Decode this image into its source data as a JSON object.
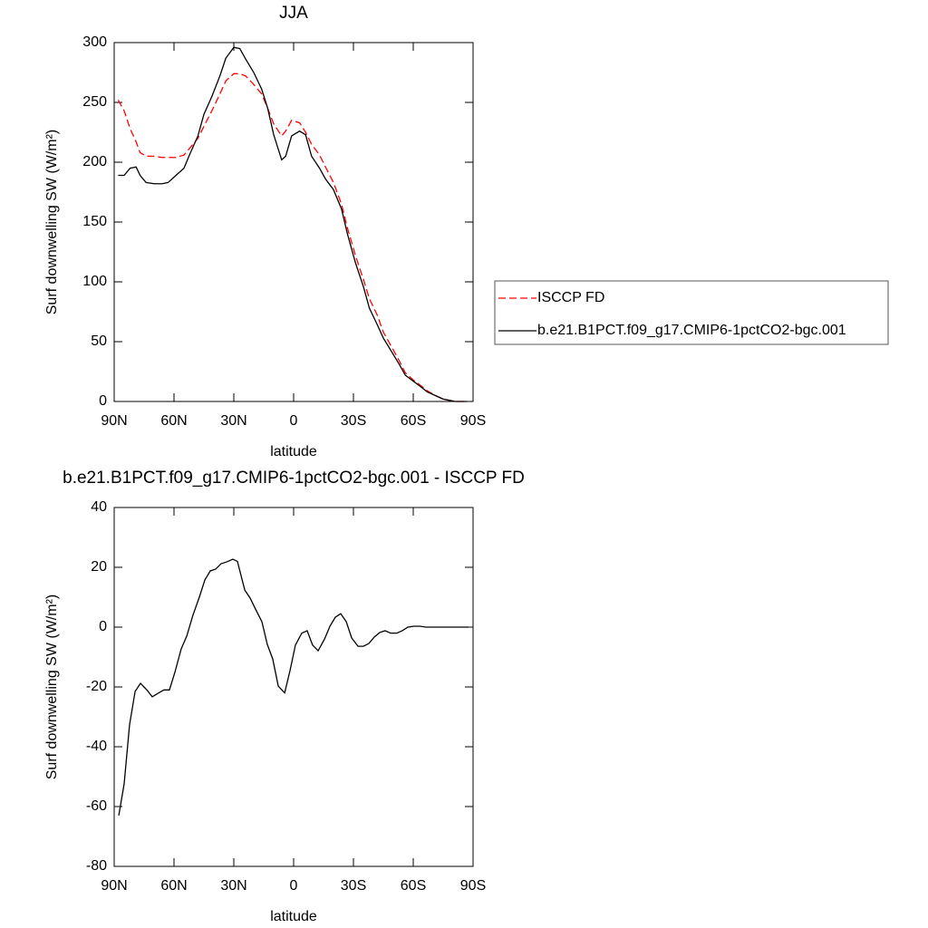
{
  "chart_data": [
    {
      "type": "line",
      "title": "JJA",
      "x_label": "latitude",
      "y_label": "Surf downwelling SW (W/m²)",
      "x": [
        88,
        85,
        82,
        79,
        77,
        74,
        70,
        66,
        63,
        59,
        55,
        52,
        48,
        45,
        41,
        37,
        34,
        30,
        27,
        24,
        20,
        16,
        13,
        10,
        6,
        4,
        1,
        -3,
        -6,
        -9,
        -13,
        -16,
        -20,
        -24,
        -27,
        -31,
        -35,
        -38,
        -42,
        -45,
        -49,
        -53,
        -56,
        -60,
        -64,
        -67,
        -71,
        -75,
        -78,
        -81,
        -84,
        -87
      ],
      "series": [
        {
          "name": "ISCCP FD",
          "color": "#ff0000",
          "dash": true,
          "values": [
            252,
            243,
            228,
            217,
            208,
            205,
            205,
            204,
            204,
            204,
            206,
            212,
            220,
            230,
            243,
            257,
            268,
            274,
            274,
            272,
            265,
            257,
            245,
            232,
            222,
            226,
            235,
            233,
            225,
            215,
            206,
            196,
            183,
            165,
            145,
            122,
            102,
            86,
            72,
            58,
            46,
            34,
            24,
            18,
            13,
            9,
            5,
            2,
            1,
            0,
            0,
            0
          ]
        },
        {
          "name": "b.e21.B1PCT.f09_g17.CMIP6-1pctCO2-bgc.001",
          "color": "#000000",
          "dash": false,
          "values": [
            189,
            189,
            195,
            196,
            189,
            183,
            182,
            182,
            183,
            189,
            195,
            207,
            222,
            240,
            255,
            272,
            287,
            296,
            295,
            286,
            275,
            261,
            245,
            223,
            202,
            205,
            222,
            226,
            223,
            205,
            195,
            186,
            177,
            161,
            140,
            116,
            96,
            78,
            64,
            53,
            42,
            31,
            22,
            17,
            12,
            8,
            5,
            2,
            1,
            0,
            0,
            0
          ]
        }
      ],
      "xlim": [
        90,
        -90
      ],
      "xticks": [
        {
          "value": 90,
          "label": "90N"
        },
        {
          "value": 60,
          "label": "60N"
        },
        {
          "value": 30,
          "label": "30N"
        },
        0,
        {
          "value": -30,
          "label": "30S"
        },
        {
          "value": -60,
          "label": "60S"
        },
        {
          "value": -90,
          "label": "90S"
        }
      ],
      "ylim": [
        0,
        300
      ],
      "yticks": [
        0,
        50,
        100,
        150,
        200,
        250,
        300
      ],
      "legend": "right"
    },
    {
      "type": "line",
      "title": "b.e21.B1PCT.f09_g17.CMIP6-1pctCO2-bgc.001 - ISCCP FD",
      "x_label": "latitude",
      "y_label": "Surf downwelling SW (W/m²)",
      "x": [
        87.7,
        85,
        82.3,
        79.5,
        76.8,
        73.6,
        70.9,
        67.7,
        65,
        62.3,
        59.5,
        56.4,
        53.6,
        50.5,
        47.3,
        44.5,
        41.8,
        39.1,
        36.4,
        33.6,
        30.5,
        28.2,
        24.5,
        21.8,
        19.1,
        15.9,
        13.2,
        10.5,
        7.7,
        4.5,
        1.8,
        -0.9,
        -4.1,
        -6.8,
        -9.5,
        -12.3,
        -15.5,
        -18.2,
        -20.9,
        -23.6,
        -26.4,
        -29.1,
        -32.3,
        -35,
        -37.7,
        -40.5,
        -43.2,
        -45.9,
        -48.6,
        -51.8,
        -54.5,
        -57.3,
        -60.5,
        -63.2,
        -66.4,
        -70.9,
        -75.5,
        -80,
        -84.5,
        -87.7
      ],
      "values": [
        -63,
        -52.4,
        -32.7,
        -21.5,
        -18.8,
        -21,
        -23.3,
        -22,
        -21,
        -21,
        -15,
        -7.3,
        -3,
        4,
        10,
        15.8,
        18.8,
        19.4,
        21.2,
        21.8,
        22.7,
        22,
        12.4,
        9.7,
        6,
        1.8,
        -5.8,
        -10.6,
        -19.7,
        -22,
        -14.5,
        -6,
        -2,
        -1.2,
        -6,
        -7.9,
        -4,
        0.3,
        3.3,
        4.5,
        1.8,
        -3.6,
        -6.4,
        -6.4,
        -5.5,
        -3.3,
        -1.8,
        -1.2,
        -2,
        -2,
        -1.2,
        0,
        0.3,
        0.3,
        0,
        0,
        0,
        0,
        0,
        0
      ],
      "color": "#000000",
      "xlim": [
        90,
        -90
      ],
      "xticks": [
        {
          "value": 90,
          "label": "90N"
        },
        {
          "value": 60,
          "label": "60N"
        },
        {
          "value": 30,
          "label": "30N"
        },
        0,
        {
          "value": -30,
          "label": "30S"
        },
        {
          "value": -60,
          "label": "60S"
        },
        {
          "value": -90,
          "label": "90S"
        }
      ],
      "ylim": [
        -80,
        40
      ],
      "yticks": [
        -80,
        -60,
        -40,
        -20,
        0,
        20,
        40
      ]
    }
  ]
}
